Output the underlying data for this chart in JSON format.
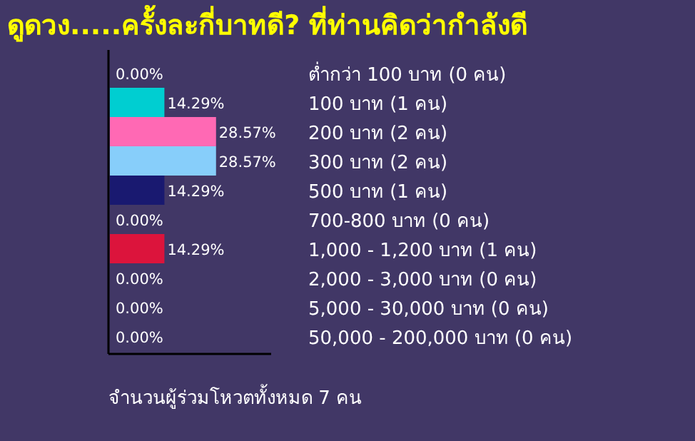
{
  "chart_data": {
    "type": "bar",
    "orientation": "horizontal",
    "title": "ดูดวง.....ครั้งละกี่บาทดี? ที่ท่านคิดว่ากำลังดี",
    "categories": [
      "ต่ำกว่า 100 บาท (0 คน)",
      "100 บาท (1 คน)",
      "200 บาท (2 คน)",
      "300 บาท (2 คน)",
      "500 บาท (1 คน)",
      "700-800 บาท (0 คน)",
      "1,000 - 1,200 บาท (1 คน)",
      "2,000 - 3,000 บาท (0 คน)",
      "5,000 - 30,000 บาท (0 คน)",
      "50,000 - 200,000 บาท (0 คน)"
    ],
    "values": [
      0,
      14.29,
      28.57,
      28.57,
      14.29,
      0,
      14.29,
      0,
      0,
      0
    ],
    "value_labels": [
      "0.00%",
      "14.29%",
      "28.57%",
      "28.57%",
      "14.29%",
      "0.00%",
      "14.29%",
      "0.00%",
      "0.00%",
      "0.00%"
    ],
    "colors": [
      "#ee82ee",
      "#00ced1",
      "#ff69b4",
      "#87cefa",
      "#191970",
      "#cd853f",
      "#dc143c",
      "#9400d3",
      "#708090",
      "#00ff7f"
    ],
    "xlim": [
      0,
      45
    ],
    "annotations": [
      "จำนวนผู้ร่วมโหวตทั้งหมด 7 คน"
    ]
  }
}
